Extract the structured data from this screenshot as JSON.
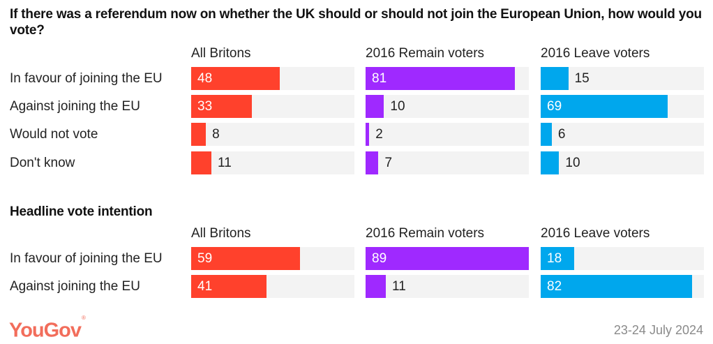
{
  "chart_data": [
    {
      "type": "bar",
      "orientation": "horizontal",
      "title": "If there was a referendum now on whether the UK should or should not join the European Union, how would you vote?",
      "categories": [
        "In favour of joining the EU",
        "Against joining the EU",
        "Would not vote",
        "Don't know"
      ],
      "series": [
        {
          "name": "All Britons",
          "color": "#ff412c",
          "values": [
            48,
            33,
            8,
            11
          ]
        },
        {
          "name": "2016 Remain voters",
          "color": "#9f29ff",
          "values": [
            81,
            10,
            2,
            7
          ]
        },
        {
          "name": "2016 Leave voters",
          "color": "#00a7ed",
          "values": [
            15,
            69,
            6,
            10
          ]
        }
      ],
      "xlim": [
        0,
        89
      ],
      "unit": "%"
    },
    {
      "type": "bar",
      "orientation": "horizontal",
      "title": "Headline vote intention",
      "categories": [
        "In favour of joining the EU",
        "Against joining the EU"
      ],
      "series": [
        {
          "name": "All Britons",
          "color": "#ff412c",
          "values": [
            59,
            41
          ]
        },
        {
          "name": "2016 Remain voters",
          "color": "#9f29ff",
          "values": [
            89,
            11
          ]
        },
        {
          "name": "2016 Leave voters",
          "color": "#00a7ed",
          "values": [
            18,
            82
          ]
        }
      ],
      "xlim": [
        0,
        89
      ],
      "unit": "%"
    }
  ],
  "footer": {
    "brand": "YouGov",
    "brand_mark": "®",
    "brand_color": "#f26d5b",
    "date": "23-24 July 2024"
  },
  "colors": {
    "track": "#f3f3f3"
  }
}
